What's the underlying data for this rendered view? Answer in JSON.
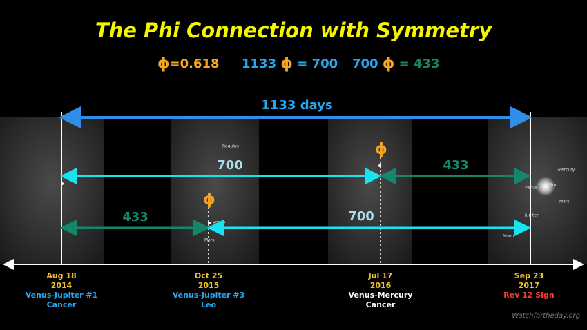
{
  "header": {
    "title": "The Phi Connection with Symmetry"
  },
  "formulas": [
    {
      "symbol": "ϕ",
      "rest": "=0.618"
    },
    {
      "left": "1133",
      "symbol": "ϕ",
      "right": "= 700"
    },
    {
      "left": "700",
      "symbol": "ϕ",
      "right": "= 433"
    }
  ],
  "spans": [
    {
      "label": "1133 days"
    },
    {
      "label": "700"
    },
    {
      "label": "433"
    },
    {
      "label": "433"
    },
    {
      "label": "700"
    }
  ],
  "phi_markers": [
    "ϕ",
    "ϕ"
  ],
  "events": [
    {
      "date": "Aug 18",
      "year": "2014",
      "name": "Venus-Jupiter #1",
      "sign": "Cancer"
    },
    {
      "date": "Oct 25",
      "year": "2015",
      "name": "Venus-Jupiter #3",
      "sign": "Leo"
    },
    {
      "date": "Jul 17",
      "year": "2016",
      "name": "Venus-Mercury",
      "sign": "Cancer"
    },
    {
      "date": "Sep 23",
      "year": "2017",
      "name": "Rev 12 Sign"
    }
  ],
  "sky_labels": [
    "Regulus",
    "Venus",
    "Mars",
    "Sun",
    "Moon",
    "Mercury",
    "Jupiter"
  ],
  "watermark": "Watchfortheday.org"
}
